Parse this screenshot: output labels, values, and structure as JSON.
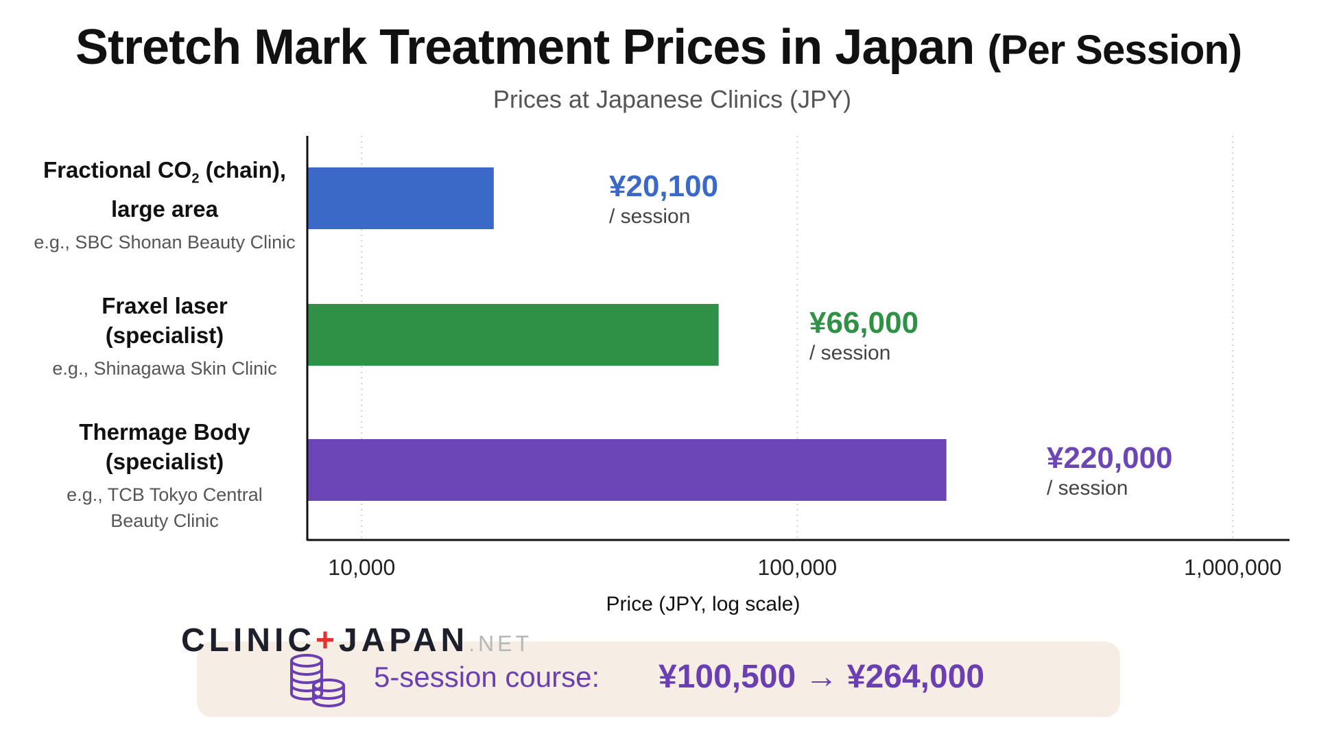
{
  "chart_data": {
    "type": "bar",
    "orientation": "horizontal",
    "title_main": "Stretch Mark Treatment Prices in Japan",
    "title_paren": "(Per Session)",
    "subtitle": "Prices at Japanese Clinics (JPY)",
    "xlabel": "Price (JPY, log scale)",
    "xscale": "log",
    "xlim": [
      7500,
      1350000
    ],
    "xticks": [
      10000,
      100000,
      1000000
    ],
    "xtick_labels": [
      "10,000",
      "100,000",
      "1,000,000"
    ],
    "grid": "vertical dotted",
    "categories": [
      {
        "name_line1": "Fractional CO",
        "name_sub": "2",
        "name_line1_end": " (chain),",
        "name_line2": "large area",
        "example": "e.g., SBC Shonan Beauty Clinic"
      },
      {
        "name_line1": "Fraxel laser",
        "name_line2": "(specialist)",
        "example": "e.g., Shinagawa Skin Clinic"
      },
      {
        "name_line1": "Thermage Body",
        "name_line2": "(specialist)",
        "example": "e.g., TCB Tokyo Central",
        "example2": "Beauty Clinic"
      }
    ],
    "values": [
      20100,
      66000,
      220000
    ],
    "value_labels": [
      "¥20,100",
      "¥66,000",
      "¥220,000"
    ],
    "unit_label": "/ session",
    "colors": [
      "#3a69c8",
      "#2e9146",
      "#6c45b7"
    ]
  },
  "logo": {
    "part1": "CLINIC",
    "plus": "+",
    "part2": "JAPAN",
    "suffix": ".NET"
  },
  "footer": {
    "icon": "coins-icon",
    "label": "5-session course:",
    "value": "¥100,500 → ¥264,000",
    "color": "#6a3fb1",
    "background": "#f6ede4"
  }
}
